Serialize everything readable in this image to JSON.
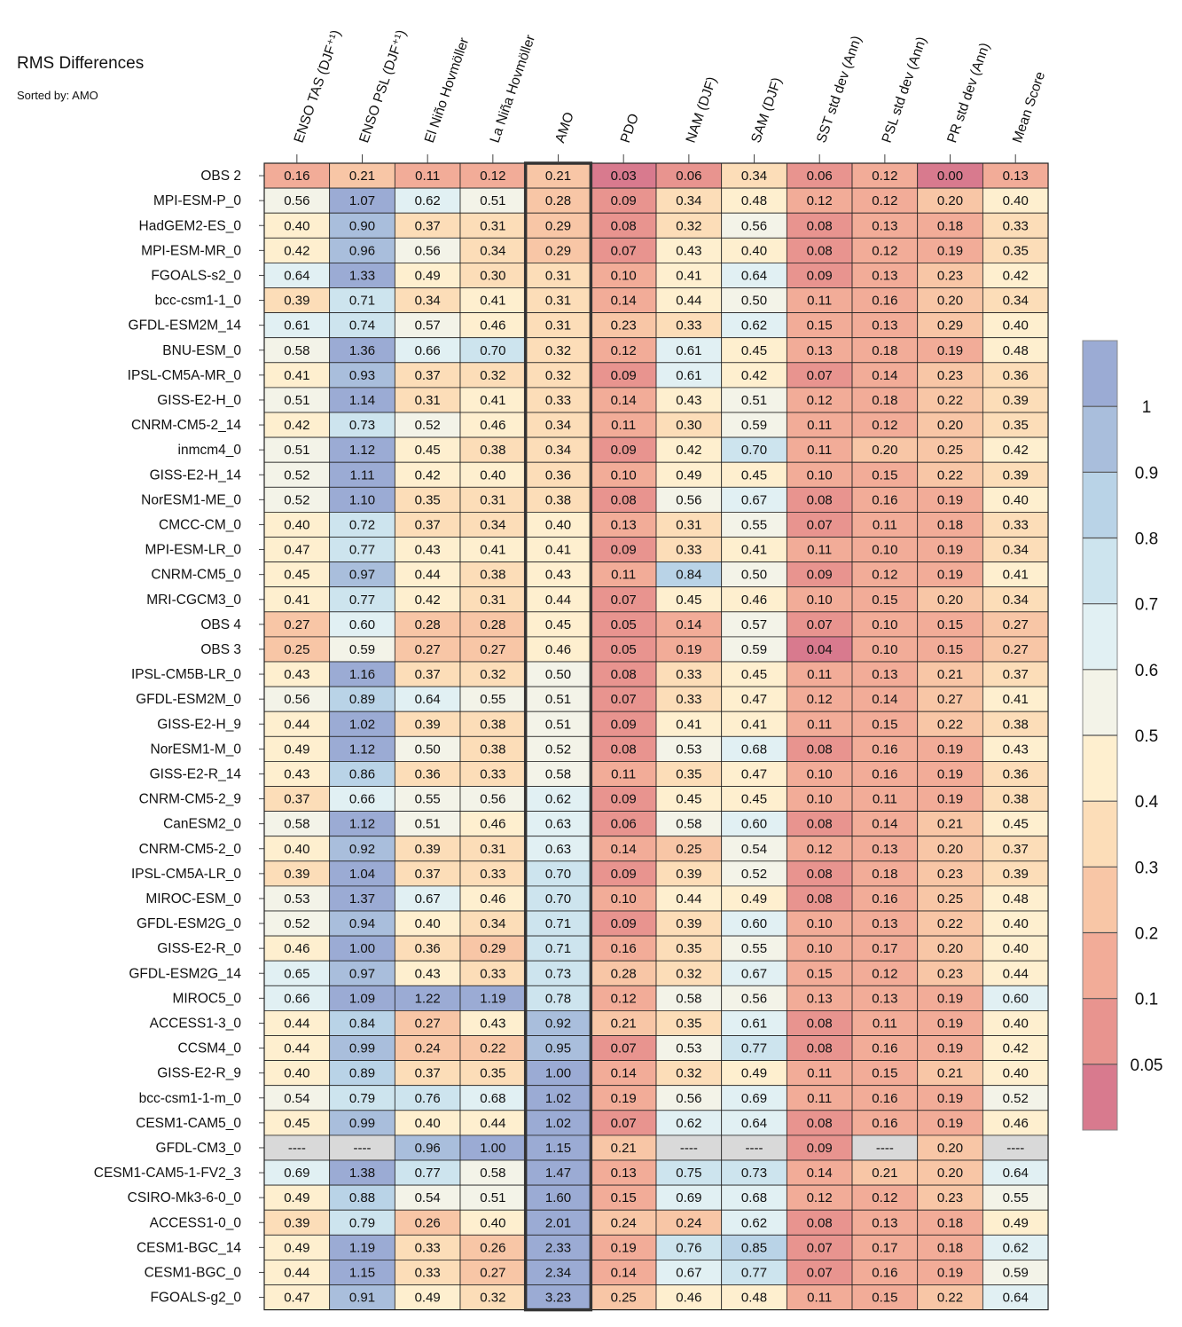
{
  "chart_data": {
    "type": "heatmap",
    "title": "RMS Differences",
    "subtitle": "Sorted by: AMO",
    "highlight_column": "AMO",
    "columns": [
      "ENSO TAS (DJF⁺¹)",
      "ENSO PSL (DJF⁺¹)",
      "El Niño Hovmöller",
      "La Niña Hovmöller",
      "AMO",
      "PDO",
      "NAM (DJF)",
      "SAM (DJF)",
      "SST std dev (Ann)",
      "PSL std dev (Ann)",
      "PR std dev (Ann)",
      "Mean Score"
    ],
    "rows": [
      {
        "name": "OBS 2",
        "values": [
          "0.16",
          "0.21",
          "0.11",
          "0.12",
          "0.21",
          "0.03",
          "0.06",
          "0.34",
          "0.06",
          "0.12",
          "0.00",
          "0.13"
        ]
      },
      {
        "name": "MPI-ESM-P_0",
        "values": [
          "0.56",
          "1.07",
          "0.62",
          "0.51",
          "0.28",
          "0.09",
          "0.34",
          "0.48",
          "0.12",
          "0.12",
          "0.20",
          "0.40"
        ]
      },
      {
        "name": "HadGEM2-ES_0",
        "values": [
          "0.40",
          "0.90",
          "0.37",
          "0.31",
          "0.29",
          "0.08",
          "0.32",
          "0.56",
          "0.08",
          "0.13",
          "0.18",
          "0.33"
        ]
      },
      {
        "name": "MPI-ESM-MR_0",
        "values": [
          "0.42",
          "0.96",
          "0.56",
          "0.34",
          "0.29",
          "0.07",
          "0.43",
          "0.40",
          "0.08",
          "0.12",
          "0.19",
          "0.35"
        ]
      },
      {
        "name": "FGOALS-s2_0",
        "values": [
          "0.64",
          "1.33",
          "0.49",
          "0.30",
          "0.31",
          "0.10",
          "0.41",
          "0.64",
          "0.09",
          "0.13",
          "0.23",
          "0.42"
        ]
      },
      {
        "name": "bcc-csm1-1_0",
        "values": [
          "0.39",
          "0.71",
          "0.34",
          "0.41",
          "0.31",
          "0.14",
          "0.44",
          "0.50",
          "0.11",
          "0.16",
          "0.20",
          "0.34"
        ]
      },
      {
        "name": "GFDL-ESM2M_14",
        "values": [
          "0.61",
          "0.74",
          "0.57",
          "0.46",
          "0.31",
          "0.23",
          "0.33",
          "0.62",
          "0.15",
          "0.13",
          "0.29",
          "0.40"
        ]
      },
      {
        "name": "BNU-ESM_0",
        "values": [
          "0.58",
          "1.36",
          "0.66",
          "0.70",
          "0.32",
          "0.12",
          "0.61",
          "0.45",
          "0.13",
          "0.18",
          "0.19",
          "0.48"
        ]
      },
      {
        "name": "IPSL-CM5A-MR_0",
        "values": [
          "0.41",
          "0.93",
          "0.37",
          "0.32",
          "0.32",
          "0.09",
          "0.61",
          "0.42",
          "0.07",
          "0.14",
          "0.23",
          "0.36"
        ]
      },
      {
        "name": "GISS-E2-H_0",
        "values": [
          "0.51",
          "1.14",
          "0.31",
          "0.41",
          "0.33",
          "0.14",
          "0.43",
          "0.51",
          "0.12",
          "0.18",
          "0.22",
          "0.39"
        ]
      },
      {
        "name": "CNRM-CM5-2_14",
        "values": [
          "0.42",
          "0.73",
          "0.52",
          "0.46",
          "0.34",
          "0.11",
          "0.30",
          "0.59",
          "0.11",
          "0.12",
          "0.20",
          "0.35"
        ]
      },
      {
        "name": "inmcm4_0",
        "values": [
          "0.51",
          "1.12",
          "0.45",
          "0.38",
          "0.34",
          "0.09",
          "0.42",
          "0.70",
          "0.11",
          "0.20",
          "0.25",
          "0.42"
        ]
      },
      {
        "name": "GISS-E2-H_14",
        "values": [
          "0.52",
          "1.11",
          "0.42",
          "0.40",
          "0.36",
          "0.10",
          "0.49",
          "0.45",
          "0.10",
          "0.15",
          "0.22",
          "0.39"
        ]
      },
      {
        "name": "NorESM1-ME_0",
        "values": [
          "0.52",
          "1.10",
          "0.35",
          "0.31",
          "0.38",
          "0.08",
          "0.56",
          "0.67",
          "0.08",
          "0.16",
          "0.19",
          "0.40"
        ]
      },
      {
        "name": "CMCC-CM_0",
        "values": [
          "0.40",
          "0.72",
          "0.37",
          "0.34",
          "0.40",
          "0.13",
          "0.31",
          "0.55",
          "0.07",
          "0.11",
          "0.18",
          "0.33"
        ]
      },
      {
        "name": "MPI-ESM-LR_0",
        "values": [
          "0.47",
          "0.77",
          "0.43",
          "0.41",
          "0.41",
          "0.09",
          "0.33",
          "0.41",
          "0.11",
          "0.10",
          "0.19",
          "0.34"
        ]
      },
      {
        "name": "CNRM-CM5_0",
        "values": [
          "0.45",
          "0.97",
          "0.44",
          "0.38",
          "0.43",
          "0.11",
          "0.84",
          "0.50",
          "0.09",
          "0.12",
          "0.19",
          "0.41"
        ]
      },
      {
        "name": "MRI-CGCM3_0",
        "values": [
          "0.41",
          "0.77",
          "0.42",
          "0.31",
          "0.44",
          "0.07",
          "0.45",
          "0.46",
          "0.10",
          "0.15",
          "0.20",
          "0.34"
        ]
      },
      {
        "name": "OBS 4",
        "values": [
          "0.27",
          "0.60",
          "0.28",
          "0.28",
          "0.45",
          "0.05",
          "0.14",
          "0.57",
          "0.07",
          "0.10",
          "0.15",
          "0.27"
        ]
      },
      {
        "name": "OBS 3",
        "values": [
          "0.25",
          "0.59",
          "0.27",
          "0.27",
          "0.46",
          "0.05",
          "0.19",
          "0.59",
          "0.04",
          "0.10",
          "0.15",
          "0.27"
        ]
      },
      {
        "name": "IPSL-CM5B-LR_0",
        "values": [
          "0.43",
          "1.16",
          "0.37",
          "0.32",
          "0.50",
          "0.08",
          "0.33",
          "0.45",
          "0.11",
          "0.13",
          "0.21",
          "0.37"
        ]
      },
      {
        "name": "GFDL-ESM2M_0",
        "values": [
          "0.56",
          "0.89",
          "0.64",
          "0.55",
          "0.51",
          "0.07",
          "0.33",
          "0.47",
          "0.12",
          "0.14",
          "0.27",
          "0.41"
        ]
      },
      {
        "name": "GISS-E2-H_9",
        "values": [
          "0.44",
          "1.02",
          "0.39",
          "0.38",
          "0.51",
          "0.09",
          "0.41",
          "0.41",
          "0.11",
          "0.15",
          "0.22",
          "0.38"
        ]
      },
      {
        "name": "NorESM1-M_0",
        "values": [
          "0.49",
          "1.12",
          "0.50",
          "0.38",
          "0.52",
          "0.08",
          "0.53",
          "0.68",
          "0.08",
          "0.16",
          "0.19",
          "0.43"
        ]
      },
      {
        "name": "GISS-E2-R_14",
        "values": [
          "0.43",
          "0.86",
          "0.36",
          "0.33",
          "0.58",
          "0.11",
          "0.35",
          "0.47",
          "0.10",
          "0.16",
          "0.19",
          "0.36"
        ]
      },
      {
        "name": "CNRM-CM5-2_9",
        "values": [
          "0.37",
          "0.66",
          "0.55",
          "0.56",
          "0.62",
          "0.09",
          "0.45",
          "0.45",
          "0.10",
          "0.11",
          "0.19",
          "0.38"
        ]
      },
      {
        "name": "CanESM2_0",
        "values": [
          "0.58",
          "1.12",
          "0.51",
          "0.46",
          "0.63",
          "0.06",
          "0.58",
          "0.60",
          "0.08",
          "0.14",
          "0.21",
          "0.45"
        ]
      },
      {
        "name": "CNRM-CM5-2_0",
        "values": [
          "0.40",
          "0.92",
          "0.39",
          "0.31",
          "0.63",
          "0.14",
          "0.25",
          "0.54",
          "0.12",
          "0.13",
          "0.20",
          "0.37"
        ]
      },
      {
        "name": "IPSL-CM5A-LR_0",
        "values": [
          "0.39",
          "1.04",
          "0.37",
          "0.33",
          "0.70",
          "0.09",
          "0.39",
          "0.52",
          "0.08",
          "0.18",
          "0.23",
          "0.39"
        ]
      },
      {
        "name": "MIROC-ESM_0",
        "values": [
          "0.53",
          "1.37",
          "0.67",
          "0.46",
          "0.70",
          "0.10",
          "0.44",
          "0.49",
          "0.08",
          "0.16",
          "0.25",
          "0.48"
        ]
      },
      {
        "name": "GFDL-ESM2G_0",
        "values": [
          "0.52",
          "0.94",
          "0.40",
          "0.34",
          "0.71",
          "0.09",
          "0.39",
          "0.60",
          "0.10",
          "0.13",
          "0.22",
          "0.40"
        ]
      },
      {
        "name": "GISS-E2-R_0",
        "values": [
          "0.46",
          "1.00",
          "0.36",
          "0.29",
          "0.71",
          "0.16",
          "0.35",
          "0.55",
          "0.10",
          "0.17",
          "0.20",
          "0.40"
        ]
      },
      {
        "name": "GFDL-ESM2G_14",
        "values": [
          "0.65",
          "0.97",
          "0.43",
          "0.33",
          "0.73",
          "0.28",
          "0.32",
          "0.67",
          "0.15",
          "0.12",
          "0.23",
          "0.44"
        ]
      },
      {
        "name": "MIROC5_0",
        "values": [
          "0.66",
          "1.09",
          "1.22",
          "1.19",
          "0.78",
          "0.12",
          "0.58",
          "0.56",
          "0.13",
          "0.13",
          "0.19",
          "0.60"
        ]
      },
      {
        "name": "ACCESS1-3_0",
        "values": [
          "0.44",
          "0.84",
          "0.27",
          "0.43",
          "0.92",
          "0.21",
          "0.35",
          "0.61",
          "0.08",
          "0.11",
          "0.19",
          "0.40"
        ]
      },
      {
        "name": "CCSM4_0",
        "values": [
          "0.44",
          "0.99",
          "0.24",
          "0.22",
          "0.95",
          "0.07",
          "0.53",
          "0.77",
          "0.08",
          "0.16",
          "0.19",
          "0.42"
        ]
      },
      {
        "name": "GISS-E2-R_9",
        "values": [
          "0.40",
          "0.89",
          "0.37",
          "0.35",
          "1.00",
          "0.14",
          "0.32",
          "0.49",
          "0.11",
          "0.15",
          "0.21",
          "0.40"
        ]
      },
      {
        "name": "bcc-csm1-1-m_0",
        "values": [
          "0.54",
          "0.79",
          "0.76",
          "0.68",
          "1.02",
          "0.19",
          "0.56",
          "0.69",
          "0.11",
          "0.16",
          "0.19",
          "0.52"
        ]
      },
      {
        "name": "CESM1-CAM5_0",
        "values": [
          "0.45",
          "0.99",
          "0.40",
          "0.44",
          "1.02",
          "0.07",
          "0.62",
          "0.64",
          "0.08",
          "0.16",
          "0.19",
          "0.46"
        ]
      },
      {
        "name": "GFDL-CM3_0",
        "values": [
          "----",
          "----",
          "0.96",
          "1.00",
          "1.15",
          "0.21",
          "----",
          "----",
          "0.09",
          "----",
          "0.20",
          "----"
        ]
      },
      {
        "name": "CESM1-CAM5-1-FV2_3",
        "values": [
          "0.69",
          "1.38",
          "0.77",
          "0.58",
          "1.47",
          "0.13",
          "0.75",
          "0.73",
          "0.14",
          "0.21",
          "0.20",
          "0.64"
        ]
      },
      {
        "name": "CSIRO-Mk3-6-0_0",
        "values": [
          "0.49",
          "0.88",
          "0.54",
          "0.51",
          "1.60",
          "0.15",
          "0.69",
          "0.68",
          "0.12",
          "0.12",
          "0.23",
          "0.55"
        ]
      },
      {
        "name": "ACCESS1-0_0",
        "values": [
          "0.39",
          "0.79",
          "0.26",
          "0.40",
          "2.01",
          "0.24",
          "0.24",
          "0.62",
          "0.08",
          "0.13",
          "0.18",
          "0.49"
        ]
      },
      {
        "name": "CESM1-BGC_14",
        "values": [
          "0.49",
          "1.19",
          "0.33",
          "0.26",
          "2.33",
          "0.19",
          "0.76",
          "0.85",
          "0.07",
          "0.17",
          "0.18",
          "0.62"
        ]
      },
      {
        "name": "CESM1-BGC_0",
        "values": [
          "0.44",
          "1.15",
          "0.33",
          "0.27",
          "2.34",
          "0.14",
          "0.67",
          "0.77",
          "0.07",
          "0.16",
          "0.19",
          "0.59"
        ]
      },
      {
        "name": "FGOALS-g2_0",
        "values": [
          "0.47",
          "0.91",
          "0.49",
          "0.32",
          "3.23",
          "0.25",
          "0.46",
          "0.48",
          "0.11",
          "0.15",
          "0.22",
          "0.64"
        ]
      }
    ],
    "colorbar": {
      "levels": [
        0.05,
        0.1,
        0.2,
        0.3,
        0.4,
        0.5,
        0.6,
        0.7,
        0.8,
        0.9,
        1
      ],
      "labels": [
        "0.05",
        "0.1",
        "0.2",
        "0.3",
        "0.4",
        "0.5",
        "0.6",
        "0.7",
        "0.8",
        "0.9",
        "1"
      ],
      "colors": [
        "#D87A8E",
        "#E8948F",
        "#F2AC98",
        "#F8C6A6",
        "#FCDDB8",
        "#FEEFCF",
        "#F3F3E8",
        "#E1F0F3",
        "#CDE4EE",
        "#B9D3E7",
        "#A9BEDC",
        "#9BABD4"
      ],
      "missing_color": "#D9D9D9"
    }
  }
}
